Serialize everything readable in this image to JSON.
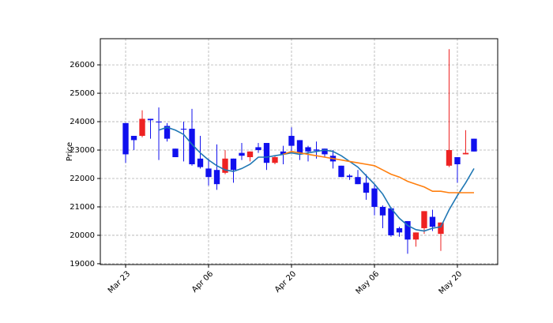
{
  "chart_data": {
    "type": "candlestick",
    "y_label": "Price",
    "categories": [
      "Mar 23",
      null,
      null,
      null,
      null,
      null,
      null,
      null,
      null,
      null,
      "Apr 06",
      null,
      null,
      null,
      null,
      null,
      null,
      null,
      null,
      null,
      "Apr 20",
      null,
      null,
      null,
      null,
      null,
      null,
      null,
      null,
      null,
      "May 06",
      null,
      null,
      null,
      null,
      null,
      null,
      null,
      null,
      null,
      "May 20",
      null,
      null
    ],
    "open": [
      23950,
      23500,
      23500,
      24100,
      24000,
      23850,
      23050,
      23750,
      23750,
      22700,
      22350,
      22300,
      22200,
      22700,
      22900,
      22750,
      23100,
      23250,
      22550,
      22950,
      23500,
      23350,
      23100,
      23020,
      23050,
      22800,
      22450,
      22100,
      22050,
      21850,
      21650,
      21000,
      20950,
      20250,
      20500,
      19850,
      20250,
      20650,
      20050,
      22450,
      22750,
      22850,
      23400
    ],
    "high": [
      23950,
      23500,
      24400,
      24100,
      24500,
      23950,
      23050,
      24000,
      24450,
      23500,
      22700,
      23200,
      23000,
      22700,
      23250,
      22950,
      23250,
      23250,
      22800,
      23150,
      23800,
      23350,
      23150,
      23300,
      23050,
      23000,
      22450,
      22150,
      22300,
      22150,
      21800,
      21050,
      21000,
      20300,
      20500,
      20100,
      20850,
      20900,
      20450,
      26550,
      22750,
      23700,
      23400
    ],
    "low": [
      22550,
      23000,
      23450,
      23400,
      22650,
      23300,
      22750,
      22600,
      22450,
      22350,
      21750,
      21600,
      22150,
      21850,
      22650,
      22600,
      22900,
      22300,
      22500,
      22500,
      22900,
      22650,
      22600,
      22700,
      22750,
      22350,
      22050,
      21950,
      21800,
      21250,
      20700,
      20250,
      19950,
      19950,
      19350,
      19600,
      20050,
      20150,
      19450,
      22400,
      21850,
      22850,
      22950
    ],
    "close": [
      22850,
      23350,
      24100,
      24050,
      23980,
      23400,
      22750,
      23720,
      22500,
      22400,
      22050,
      21800,
      22700,
      22300,
      22800,
      22950,
      23000,
      22550,
      22750,
      22850,
      23150,
      22900,
      22950,
      22980,
      22850,
      22600,
      22050,
      22050,
      21800,
      21500,
      21000,
      20700,
      20000,
      20100,
      19850,
      20100,
      20850,
      20300,
      20450,
      23000,
      22500,
      22900,
      22950
    ],
    "up_color": "#ee2222",
    "down_color": "#1010ee",
    "moving_averages": [
      {
        "color": "#1f77b4",
        "values": [
          null,
          null,
          null,
          null,
          23700,
          23800,
          23700,
          23550,
          23200,
          22900,
          22650,
          22450,
          22300,
          22250,
          22350,
          22500,
          22750,
          22750,
          22800,
          22850,
          22900,
          22850,
          22900,
          22950,
          23000,
          22950,
          22800,
          22600,
          22400,
          22100,
          21800,
          21450,
          20950,
          20600,
          20350,
          20200,
          20150,
          20250,
          20300,
          20900,
          21400,
          21850,
          22350
        ]
      },
      {
        "color": "#ff7f0e",
        "values": [
          null,
          null,
          null,
          null,
          null,
          null,
          null,
          null,
          null,
          null,
          null,
          null,
          null,
          null,
          null,
          null,
          null,
          null,
          null,
          22850,
          22950,
          22900,
          22850,
          22800,
          22750,
          22700,
          22650,
          22600,
          22550,
          22500,
          22450,
          22300,
          22150,
          22050,
          21900,
          21800,
          21700,
          21550,
          21550,
          21500,
          21500,
          21500,
          21500
        ]
      }
    ],
    "xlim": [
      -3.05,
      44.86
    ],
    "ylim": [
      18970,
      26920
    ],
    "yticks": [
      19000,
      20000,
      21000,
      22000,
      23000,
      24000,
      25000,
      26000
    ],
    "grid": true
  }
}
